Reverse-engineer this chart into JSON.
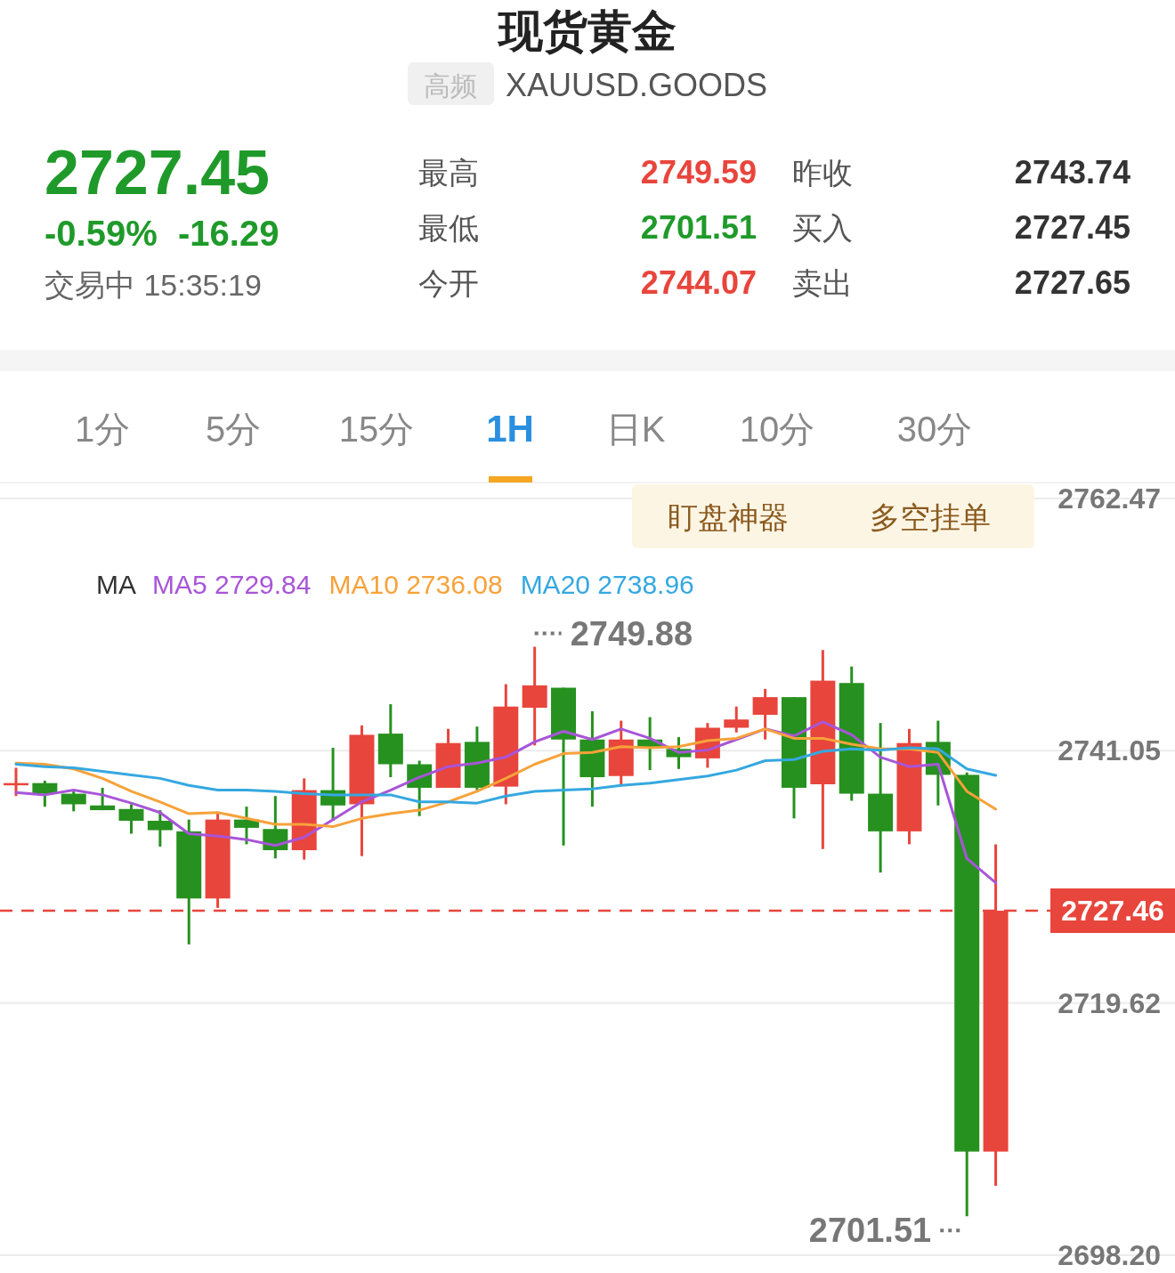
{
  "chart_data": {
    "type": "candlestick",
    "title": "现货黄金",
    "subtitle": "XAUUSD.GOODS",
    "categories": [
      null,
      null,
      null,
      null,
      null,
      null,
      null,
      null,
      null,
      null,
      null,
      null,
      null,
      null,
      null,
      null,
      null,
      null,
      null,
      null,
      null,
      null,
      null,
      null,
      null,
      null,
      null,
      null,
      null,
      null,
      null,
      null,
      null,
      null,
      null
    ],
    "ohlc": [
      [
        2738.3,
        2739.6,
        2737.2,
        2738.3
      ],
      [
        2738.3,
        2738.5,
        2736.3,
        2737.4
      ],
      [
        2737.4,
        2737.7,
        2735.9,
        2736.5
      ],
      [
        2736.4,
        2737.9,
        2736.0,
        2736.0
      ],
      [
        2736.1,
        2736.5,
        2734.0,
        2735.1
      ],
      [
        2735.1,
        2736.0,
        2732.9,
        2734.3
      ],
      [
        2734.2,
        2735.2,
        2724.6,
        2728.5
      ],
      [
        2728.5,
        2735.8,
        2727.7,
        2735.2
      ],
      [
        2735.2,
        2736.3,
        2733.1,
        2734.5
      ],
      [
        2734.4,
        2737.2,
        2731.9,
        2732.6
      ],
      [
        2732.6,
        2738.7,
        2731.8,
        2737.7
      ],
      [
        2737.7,
        2741.3,
        2735.1,
        2736.4
      ],
      [
        2736.5,
        2743.2,
        2732.1,
        2742.4
      ],
      [
        2742.5,
        2745.0,
        2738.8,
        2739.9
      ],
      [
        2739.9,
        2740.2,
        2735.5,
        2737.9
      ],
      [
        2737.9,
        2742.9,
        2737.9,
        2741.7
      ],
      [
        2741.8,
        2743.1,
        2737.7,
        2737.9
      ],
      [
        2738.0,
        2746.7,
        2736.5,
        2744.8
      ],
      [
        2744.7,
        2749.88,
        2741.5,
        2746.6
      ],
      [
        2746.4,
        2746.4,
        2733.0,
        2742.0
      ],
      [
        2742.0,
        2744.4,
        2736.3,
        2738.8
      ],
      [
        2738.9,
        2743.6,
        2738.2,
        2742.0
      ],
      [
        2742.0,
        2743.9,
        2739.4,
        2741.3
      ],
      [
        2741.2,
        2742.2,
        2739.5,
        2740.5
      ],
      [
        2740.4,
        2743.4,
        2739.6,
        2743.0
      ],
      [
        2743.0,
        2744.8,
        2742.6,
        2743.7
      ],
      [
        2744.1,
        2746.3,
        2742.0,
        2745.6
      ],
      [
        2745.6,
        2745.6,
        2735.3,
        2737.9
      ],
      [
        2738.2,
        2749.6,
        2732.7,
        2747.0
      ],
      [
        2746.8,
        2748.2,
        2736.8,
        2737.4
      ],
      [
        2737.4,
        2743.4,
        2730.7,
        2734.2
      ],
      [
        2734.2,
        2742.9,
        2733.1,
        2741.7
      ],
      [
        2741.8,
        2743.6,
        2736.4,
        2739.0
      ],
      [
        2739.0,
        2739.2,
        2701.51,
        2707.0
      ],
      [
        2707.0,
        2733.1,
        2704.1,
        2727.46
      ]
    ],
    "colors": [
      "#e8453c",
      "#26911f",
      "#26911f",
      "#26911f",
      "#26911f",
      "#26911f",
      "#26911f",
      "#e8453c",
      "#26911f",
      "#26911f",
      "#e8453c",
      "#26911f",
      "#e8453c",
      "#26911f",
      "#26911f",
      "#e8453c",
      "#26911f",
      "#e8453c",
      "#e8453c",
      "#26911f",
      "#26911f",
      "#e8453c",
      "#26911f",
      "#26911f",
      "#e8453c",
      "#e8453c",
      "#e8453c",
      "#26911f",
      "#e8453c",
      "#26911f",
      "#26911f",
      "#e8453c",
      "#26911f",
      "#26911f",
      "#e8453c"
    ],
    "series": [
      {
        "type": "line",
        "name": "MA5 2729.84",
        "color": "#a855d8",
        "values": [
          2737.5,
          2737.3,
          2737.7,
          2737.3,
          2736.6,
          2735.8,
          2734.0,
          2733.8,
          2733.5,
          2733.0,
          2733.7,
          2735.2,
          2736.7,
          2737.7,
          2738.8,
          2739.7,
          2740.0,
          2740.5,
          2741.8,
          2742.7,
          2742.0,
          2742.9,
          2742.1,
          2740.9,
          2741.1,
          2742.0,
          2742.9,
          2742.3,
          2743.5,
          2742.4,
          2740.5,
          2739.7,
          2739.9,
          2731.9,
          2729.84
        ]
      },
      {
        "type": "line",
        "name": "MA10 2736.08",
        "color": "#f7a23a",
        "values": [
          2740.0,
          2739.9,
          2739.5,
          2738.7,
          2737.6,
          2736.7,
          2735.7,
          2735.8,
          2735.3,
          2734.8,
          2734.8,
          2734.6,
          2735.3,
          2735.7,
          2736.0,
          2736.7,
          2737.6,
          2738.7,
          2739.9,
          2740.8,
          2740.9,
          2741.4,
          2741.3,
          2741.4,
          2741.9,
          2742.1,
          2742.9,
          2742.1,
          2742.1,
          2741.6,
          2741.2,
          2741.2,
          2740.9,
          2737.6,
          2736.08
        ]
      },
      {
        "type": "line",
        "name": "MA20 2738.96",
        "color": "#35a8e0",
        "values": [
          2739.9,
          2739.7,
          2739.6,
          2739.3,
          2739.0,
          2738.7,
          2738.1,
          2737.7,
          2737.7,
          2737.6,
          2737.4,
          2737.3,
          2737.3,
          2737.3,
          2736.7,
          2736.7,
          2736.6,
          2737.2,
          2737.6,
          2737.7,
          2737.8,
          2738.1,
          2738.3,
          2738.6,
          2738.9,
          2739.4,
          2740.2,
          2740.3,
          2741.0,
          2741.2,
          2741.1,
          2741.3,
          2741.2,
          2739.5,
          2738.96
        ]
      }
    ],
    "legend_title": "MA",
    "legend": "top",
    "grid": "y",
    "ylim": [
      2698.2,
      2762.47
    ],
    "yticks": [
      2762.47,
      2741.05,
      2719.62,
      {
        "value": 2698.2,
        "label": "2698.20"
      }
    ],
    "ref_lines": [
      {
        "axis": "y",
        "value": 2727.46,
        "label": "2727.46",
        "color": "#e8453c",
        "line_style": "dashed"
      }
    ],
    "annotations": [
      "高频",
      "2727.45",
      "-0.59%",
      "-16.29",
      "交易中 15:35:19",
      "最高",
      "2749.59",
      "最低",
      "2701.51",
      "今开",
      "2744.07",
      "昨收",
      "2743.74",
      "买入",
      "2727.45",
      "卖出",
      "2727.65",
      "1分",
      "5分",
      "15分",
      "1H",
      "日K",
      "10分",
      "30分",
      "盯盘神器",
      "多空挂单",
      "2749.88",
      "2701.51"
    ]
  }
}
